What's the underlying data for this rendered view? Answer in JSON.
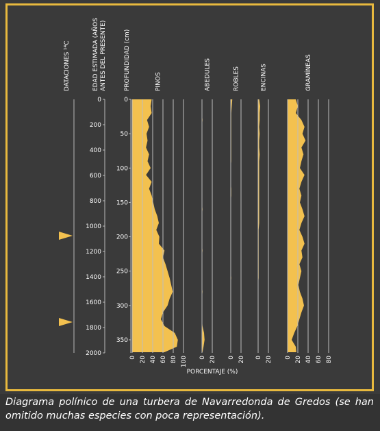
{
  "chart_data": {
    "type": "pollen",
    "dating_label": "DATACIONES ¹⁴C",
    "age_label": [
      "EDAD ESTIMADA (AÑOS",
      "ANTES DEL PRESENTE)"
    ],
    "depth_label": "PROFUNDIDAD (cm)",
    "x_label": "PORCENTAJE (%)",
    "datings": [
      1076,
      1757
    ],
    "agelim": [
      0,
      2000
    ],
    "ageticks": [
      0,
      200,
      400,
      600,
      800,
      1000,
      1200,
      1400,
      1600,
      1800,
      2000
    ],
    "ylim": [
      0,
      369
    ],
    "yticks": [
      0,
      50,
      100,
      150,
      200,
      250,
      300,
      350
    ],
    "depths": [
      0,
      10,
      20,
      30,
      40,
      50,
      60,
      70,
      80,
      90,
      100,
      110,
      120,
      130,
      140,
      150,
      160,
      170,
      180,
      190,
      200,
      210,
      220,
      230,
      240,
      250,
      260,
      270,
      280,
      290,
      300,
      310,
      320,
      330,
      340,
      350,
      360,
      368
    ],
    "series": [
      {
        "name": "PINOS",
        "color": "#f3c14f",
        "xlim": [
          0,
          100
        ],
        "xticks": [
          0,
          20,
          40,
          60,
          80,
          100
        ],
        "values": [
          38,
          36,
          38,
          29,
          33,
          28,
          30,
          27,
          33,
          30,
          36,
          27,
          38,
          33,
          38,
          41,
          44,
          49,
          52,
          47,
          53,
          52,
          63,
          60,
          65,
          69,
          73,
          76,
          79,
          73,
          69,
          60,
          56,
          63,
          83,
          89,
          87,
          63
        ]
      },
      {
        "name": "ABEDULES",
        "color": "#f3c14f",
        "xlim": [
          0,
          20
        ],
        "xticks": [
          0,
          20
        ],
        "values": [
          0,
          0,
          0,
          1,
          0,
          0,
          0,
          0,
          0,
          0,
          0,
          0,
          0,
          0,
          0,
          0,
          1,
          0,
          0,
          0,
          0,
          0,
          1,
          0,
          0,
          0,
          0,
          0,
          1,
          0,
          0,
          0,
          0,
          1,
          4,
          5,
          3,
          1
        ]
      },
      {
        "name": "ROBLES",
        "color": "#f3c14f",
        "xlim": [
          0,
          20
        ],
        "xticks": [
          0,
          20
        ],
        "values": [
          3,
          2,
          1,
          1,
          1,
          1,
          1,
          1,
          1,
          1,
          0,
          0,
          0,
          1,
          1,
          0,
          0,
          0,
          0,
          0,
          0,
          0,
          0,
          0,
          0,
          0,
          1,
          0,
          0,
          0,
          0,
          0,
          0,
          0,
          0,
          0,
          0,
          0
        ]
      },
      {
        "name": "ENCINAS",
        "color": "#f3c14f",
        "xlim": [
          0,
          20
        ],
        "xticks": [
          0,
          20
        ],
        "values": [
          2,
          4,
          3,
          3,
          2,
          3,
          2,
          2,
          3,
          2,
          2,
          2,
          2,
          2,
          2,
          2,
          2,
          2,
          2,
          1,
          1,
          1,
          1,
          1,
          1,
          1,
          1,
          0,
          0,
          0,
          0,
          0,
          0,
          0,
          0,
          0,
          0,
          0
        ]
      },
      {
        "name": "GRAMÍNEAS",
        "color": "#f3c14f",
        "xlim": [
          0,
          80
        ],
        "xticks": [
          0,
          20,
          40,
          60,
          80
        ],
        "values": [
          16,
          20,
          16,
          27,
          33,
          29,
          35,
          27,
          31,
          27,
          24,
          33,
          27,
          23,
          27,
          24,
          29,
          33,
          27,
          23,
          29,
          33,
          27,
          29,
          23,
          27,
          24,
          21,
          24,
          29,
          32,
          27,
          23,
          19,
          13,
          8,
          16,
          17
        ]
      }
    ]
  },
  "caption": "Diagrama polínico de una turbera de Navarredonda de Gredos (se han omitido muchas especies con poca representación)."
}
